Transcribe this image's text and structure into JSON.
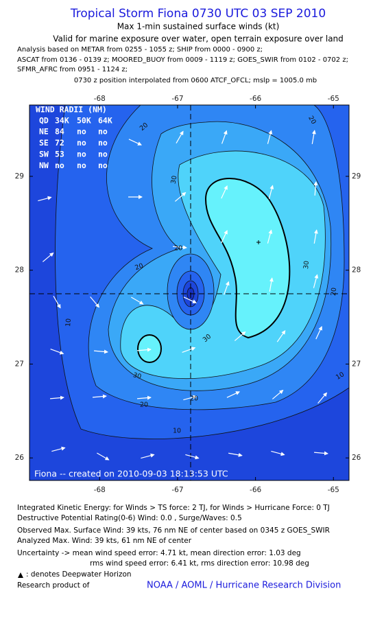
{
  "header": {
    "title": "Tropical Storm Fiona 0730 UTC 03 SEP 2010",
    "subtitle": "Max 1-min sustained surface winds (kt)",
    "validity": "Valid for marine exposure over water, open terrain exposure over land",
    "analysis": [
      "Analysis based on METAR from 0255 - 1055 z; SHIP from 0000 - 0900 z;",
      "ASCAT from 0136 - 0139 z; MOORED_BUOY from 0009 - 1119 z; GOES_SWIR from 0102 - 0702 z;",
      "SFMR_AFRC from 0951 - 1124 z;"
    ],
    "position_note": "0730 z position interpolated from 0600 ATCF_OFCL; mslp = 1005.0 mb"
  },
  "map": {
    "xlim": [
      -68.9,
      -64.8
    ],
    "ylim": [
      25.76,
      29.76
    ],
    "xticks": [
      -68,
      -67,
      -66,
      -65
    ],
    "yticks": [
      26,
      27,
      28,
      29
    ],
    "contour_labels": [
      "20",
      "30",
      "20",
      "20",
      "30",
      "20",
      "20",
      "30",
      "30",
      "20",
      "20",
      "10",
      "10",
      "10"
    ],
    "wind_radii": {
      "title": "WIND RADII (NM)",
      "header": [
        "QD",
        "34K",
        "50K",
        "64K"
      ],
      "rows": [
        [
          "NE",
          "84",
          "no",
          "no"
        ],
        [
          "SE",
          "72",
          "no",
          "no"
        ],
        [
          "SW",
          "53",
          "no",
          "no"
        ],
        [
          "NW",
          "no",
          "no",
          "no"
        ]
      ]
    },
    "credit": "Fiona -- created on 2010-09-03 18:13:53 UTC"
  },
  "footer": {
    "ike": "Integrated Kinetic Energy:  for Winds > TS force: 2 TJ,  for Winds > Hurricane Force: 0 TJ",
    "dpr": "Destructive Potential Rating(0-6)   Wind: 0.0 , Surge/Waves: 0.5",
    "observed": "Observed Max. Surface Wind: 39 kts, 76 nm NE of center based on 0345 z GOES_SWIR",
    "analyzed": "Analyzed Max. Wind: 39 kts, 61 nm NE of center",
    "uncertainty": [
      "Uncertainty -> mean wind speed error: 4.71 kt,   mean direction error: 1.03 deg",
      "rms wind speed error: 6.41 kt,    rms direction error: 10.98 deg"
    ],
    "legend_note": ": denotes Deepwater Horizon",
    "research_label": "Research product of",
    "research_org": "NOAA / AOML / Hurricane Research Division"
  }
}
